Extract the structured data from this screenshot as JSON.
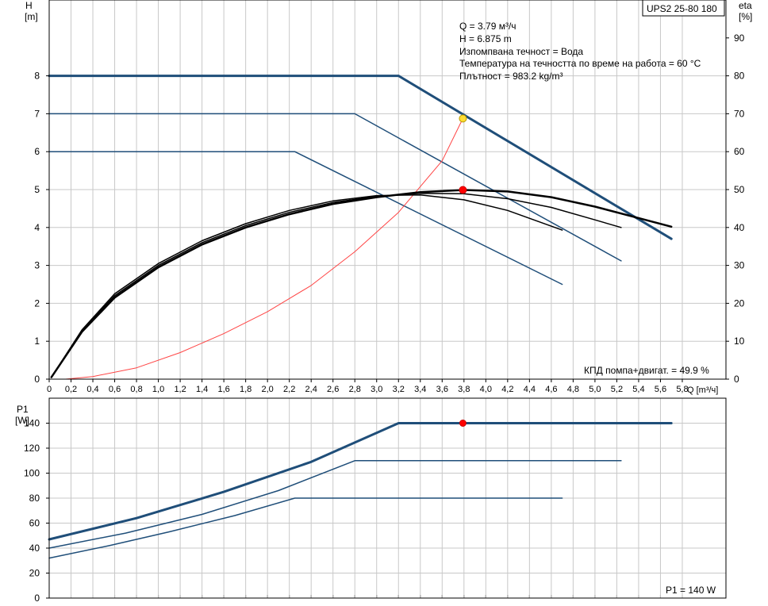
{
  "chart_data": [
    {
      "type": "line",
      "model_label": "UPS2 25-80 180",
      "xlabel": "Q [m³/ч]",
      "ylabel_left": {
        "sym": "H",
        "unit": "[m]"
      },
      "ylabel_right": {
        "sym": "eta",
        "unit": "[%]"
      },
      "xlim": [
        0,
        6.2
      ],
      "ylim_left": [
        0,
        10
      ],
      "ylim_right": [
        0,
        100
      ],
      "x_ticks": [
        "0",
        "0,2",
        "0,4",
        "0,6",
        "0,8",
        "1,0",
        "1,2",
        "1,4",
        "1,6",
        "1,8",
        "2,0",
        "2,2",
        "2,4",
        "2,6",
        "2,8",
        "3,0",
        "3,2",
        "3,4",
        "3,6",
        "3,8",
        "4,0",
        "4,2",
        "4,4",
        "4,6",
        "4,8",
        "5,0",
        "5,2",
        "5,4",
        "5,6",
        "5,8"
      ],
      "y_ticks_left": [
        "0",
        "1",
        "2",
        "3",
        "4",
        "5",
        "6",
        "7",
        "8"
      ],
      "y_ticks_right": [
        "0",
        "10",
        "20",
        "30",
        "40",
        "50",
        "60",
        "70",
        "80",
        "90"
      ],
      "info_lines": [
        "Q = 3.79 м³/ч",
        "H = 6.875 m",
        "Изпомпвана течност = Вода",
        "Температура на течността по време на работа = 60 °C",
        "Плътност = 983.2 kg/m³"
      ],
      "efficiency_label": "КПД помпа+двигат. = 49.9 %",
      "colors": {
        "pump": "#1f4e79",
        "efficiency": "#000000",
        "system": "#ff4444",
        "duty_point": "#ffdd33",
        "eta_point": "#ff0000"
      },
      "series": [
        {
          "axis": "left",
          "kind": "pump",
          "stroke": 3.0,
          "x": [
            0,
            3.2,
            5.7
          ],
          "y": [
            8,
            8,
            3.7
          ]
        },
        {
          "axis": "left",
          "kind": "pump",
          "stroke": 1.5,
          "x": [
            0,
            2.8,
            5.24
          ],
          "y": [
            7,
            7,
            3.12
          ]
        },
        {
          "axis": "left",
          "kind": "pump",
          "stroke": 1.5,
          "x": [
            0,
            2.25,
            4.7
          ],
          "y": [
            6,
            6,
            2.5
          ]
        },
        {
          "axis": "left",
          "kind": "system",
          "stroke": 1.0,
          "x": [
            0.15,
            0.4,
            0.8,
            1.2,
            1.6,
            2.0,
            2.4,
            2.8,
            3.2,
            3.6,
            3.79
          ],
          "y": [
            0.0,
            0.07,
            0.3,
            0.7,
            1.2,
            1.78,
            2.47,
            3.36,
            4.4,
            5.76,
            6.875
          ]
        },
        {
          "axis": "right",
          "kind": "efficiency",
          "stroke": 2.5,
          "x": [
            0.02,
            0.3,
            0.6,
            1.0,
            1.4,
            1.8,
            2.2,
            2.6,
            3.0,
            3.4,
            3.8,
            4.2,
            4.6,
            5.0,
            5.4,
            5.7
          ],
          "y": [
            0.5,
            12.5,
            21.5,
            29.5,
            35.5,
            40.0,
            43.5,
            46.2,
            48.0,
            49.3,
            49.9,
            49.5,
            48.0,
            45.5,
            42.5,
            40.2
          ]
        },
        {
          "axis": "right",
          "kind": "efficiency",
          "stroke": 1.5,
          "x": [
            0.02,
            0.3,
            0.6,
            1.0,
            1.4,
            1.8,
            2.2,
            2.6,
            3.0,
            3.4,
            3.8,
            4.2,
            4.6,
            5.0,
            5.24
          ],
          "y": [
            0.5,
            12.8,
            22.0,
            30.0,
            36.0,
            40.5,
            44.0,
            46.6,
            48.2,
            49.0,
            48.9,
            47.6,
            45.3,
            42.0,
            40.0
          ]
        },
        {
          "axis": "right",
          "kind": "efficiency",
          "stroke": 1.5,
          "x": [
            0.02,
            0.3,
            0.6,
            1.0,
            1.4,
            1.8,
            2.2,
            2.6,
            3.0,
            3.4,
            3.8,
            4.2,
            4.7
          ],
          "y": [
            0.5,
            13.0,
            22.5,
            30.5,
            36.5,
            41.0,
            44.5,
            47.0,
            48.4,
            48.6,
            47.3,
            44.5,
            39.3
          ]
        }
      ],
      "points": [
        {
          "axis": "left",
          "x": 3.79,
          "y": 6.875,
          "color": "#ffdd33"
        },
        {
          "axis": "right",
          "x": 3.79,
          "y": 49.9,
          "color": "#ff0000"
        }
      ]
    },
    {
      "type": "line",
      "ylabel": {
        "sym": "P1",
        "unit": "[W]"
      },
      "xlim": [
        0,
        6.2
      ],
      "ylim": [
        0,
        160
      ],
      "y_ticks": [
        "0",
        "20",
        "40",
        "60",
        "80",
        "100",
        "120",
        "140"
      ],
      "power_label": "P1 = 140 W",
      "series": [
        {
          "stroke": 3.0,
          "x": [
            0,
            0.8,
            1.6,
            2.4,
            3.2,
            5.7
          ],
          "y": [
            47,
            64,
            85,
            109,
            140,
            140
          ]
        },
        {
          "stroke": 1.5,
          "x": [
            0,
            0.7,
            1.4,
            2.1,
            2.8,
            5.24
          ],
          "y": [
            40,
            52,
            67,
            86,
            110,
            110
          ]
        },
        {
          "stroke": 1.5,
          "x": [
            0,
            0.55,
            1.1,
            1.7,
            2.25,
            4.7
          ],
          "y": [
            32,
            42,
            53,
            66,
            80,
            80
          ]
        }
      ],
      "points": [
        {
          "x": 3.79,
          "y": 140,
          "color": "#ff0000"
        }
      ]
    }
  ]
}
